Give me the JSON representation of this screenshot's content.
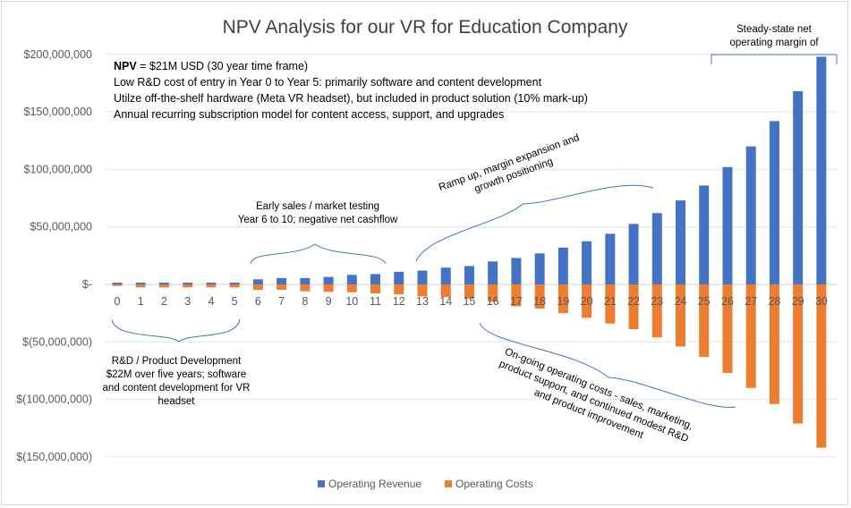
{
  "chart_data": {
    "type": "bar",
    "title": "NPV Analysis for our VR for Education Company",
    "xlabel": "",
    "ylabel": "",
    "ylim": [
      -150000000,
      200000000
    ],
    "grid": true,
    "legend_position": "bottom",
    "categories": [
      "0",
      "1",
      "2",
      "3",
      "4",
      "5",
      "6",
      "7",
      "8",
      "9",
      "10",
      "11",
      "12",
      "13",
      "14",
      "15",
      "16",
      "17",
      "18",
      "19",
      "20",
      "21",
      "22",
      "23",
      "24",
      "25",
      "26",
      "27",
      "28",
      "29",
      "30"
    ],
    "y_tick_labels": [
      "$200,000,000",
      "$150,000,000",
      "$100,000,000",
      "$50,000,000",
      "$-",
      "$(50,000,000)",
      "$(100,000,000)",
      "$(150,000,000)"
    ],
    "y_tick_values": [
      200000000,
      150000000,
      100000000,
      50000000,
      0,
      -50000000,
      -100000000,
      -150000000
    ],
    "series": [
      {
        "name": "Operating Revenue",
        "color": "#4472c4",
        "values": [
          1500000,
          1500000,
          1500000,
          1500000,
          1500000,
          1500000,
          4400000,
          5500000,
          5500000,
          6500000,
          8300000,
          9000000,
          11000000,
          12000000,
          14600000,
          16000000,
          20000000,
          23000000,
          27000000,
          32000000,
          37500000,
          44000000,
          52600000,
          62000000,
          73000000,
          86000000,
          102000000,
          120000000,
          142000000,
          168000000,
          198000000
        ]
      },
      {
        "name": "Operating Costs",
        "color": "#ed7d31",
        "values": [
          -1300000,
          -2600000,
          -2600000,
          -2600000,
          -2600000,
          -2600000,
          -4700000,
          -4700000,
          -6000000,
          -6500000,
          -6800000,
          -7800000,
          -8600000,
          -10400000,
          -11000000,
          -12500000,
          -15000000,
          -19000000,
          -21000000,
          -25000000,
          -29000000,
          -34000000,
          -39000000,
          -46000000,
          -54000000,
          -63000000,
          -77000000,
          -90000000,
          -104000000,
          -121000000,
          -142000000
        ]
      }
    ],
    "annotations": {
      "npv_label": "NPV",
      "npv_value": " = $21M USD (30 year time frame)",
      "line2": "Low R&D cost of entry in Year 0 to Year 5:  primarily software and content development",
      "line3": "Utilze off-the-shelf hardware (Meta VR headset), but included in product solution (10% mark-up)",
      "line4": "Annual recurring subscription model for content access, support, and upgrades",
      "early_sales_1": "Early sales / market testing",
      "early_sales_2": "Year 6 to 10; negative net cashflow",
      "ramp_1": "Ramp up, margin expansion and",
      "ramp_2": "growth positioning",
      "steady_1": "Steady-state net",
      "steady_2": "operating margin of",
      "rd_1": "R&D / Product Development",
      "rd_2": "$22M over five years; software",
      "rd_3": "and content development for VR",
      "rd_4": "headset",
      "opex_1": "On-going operating costs - sales, marketing,",
      "opex_2": "product support, and continued modest R&D",
      "opex_3": "and product improvement"
    }
  }
}
